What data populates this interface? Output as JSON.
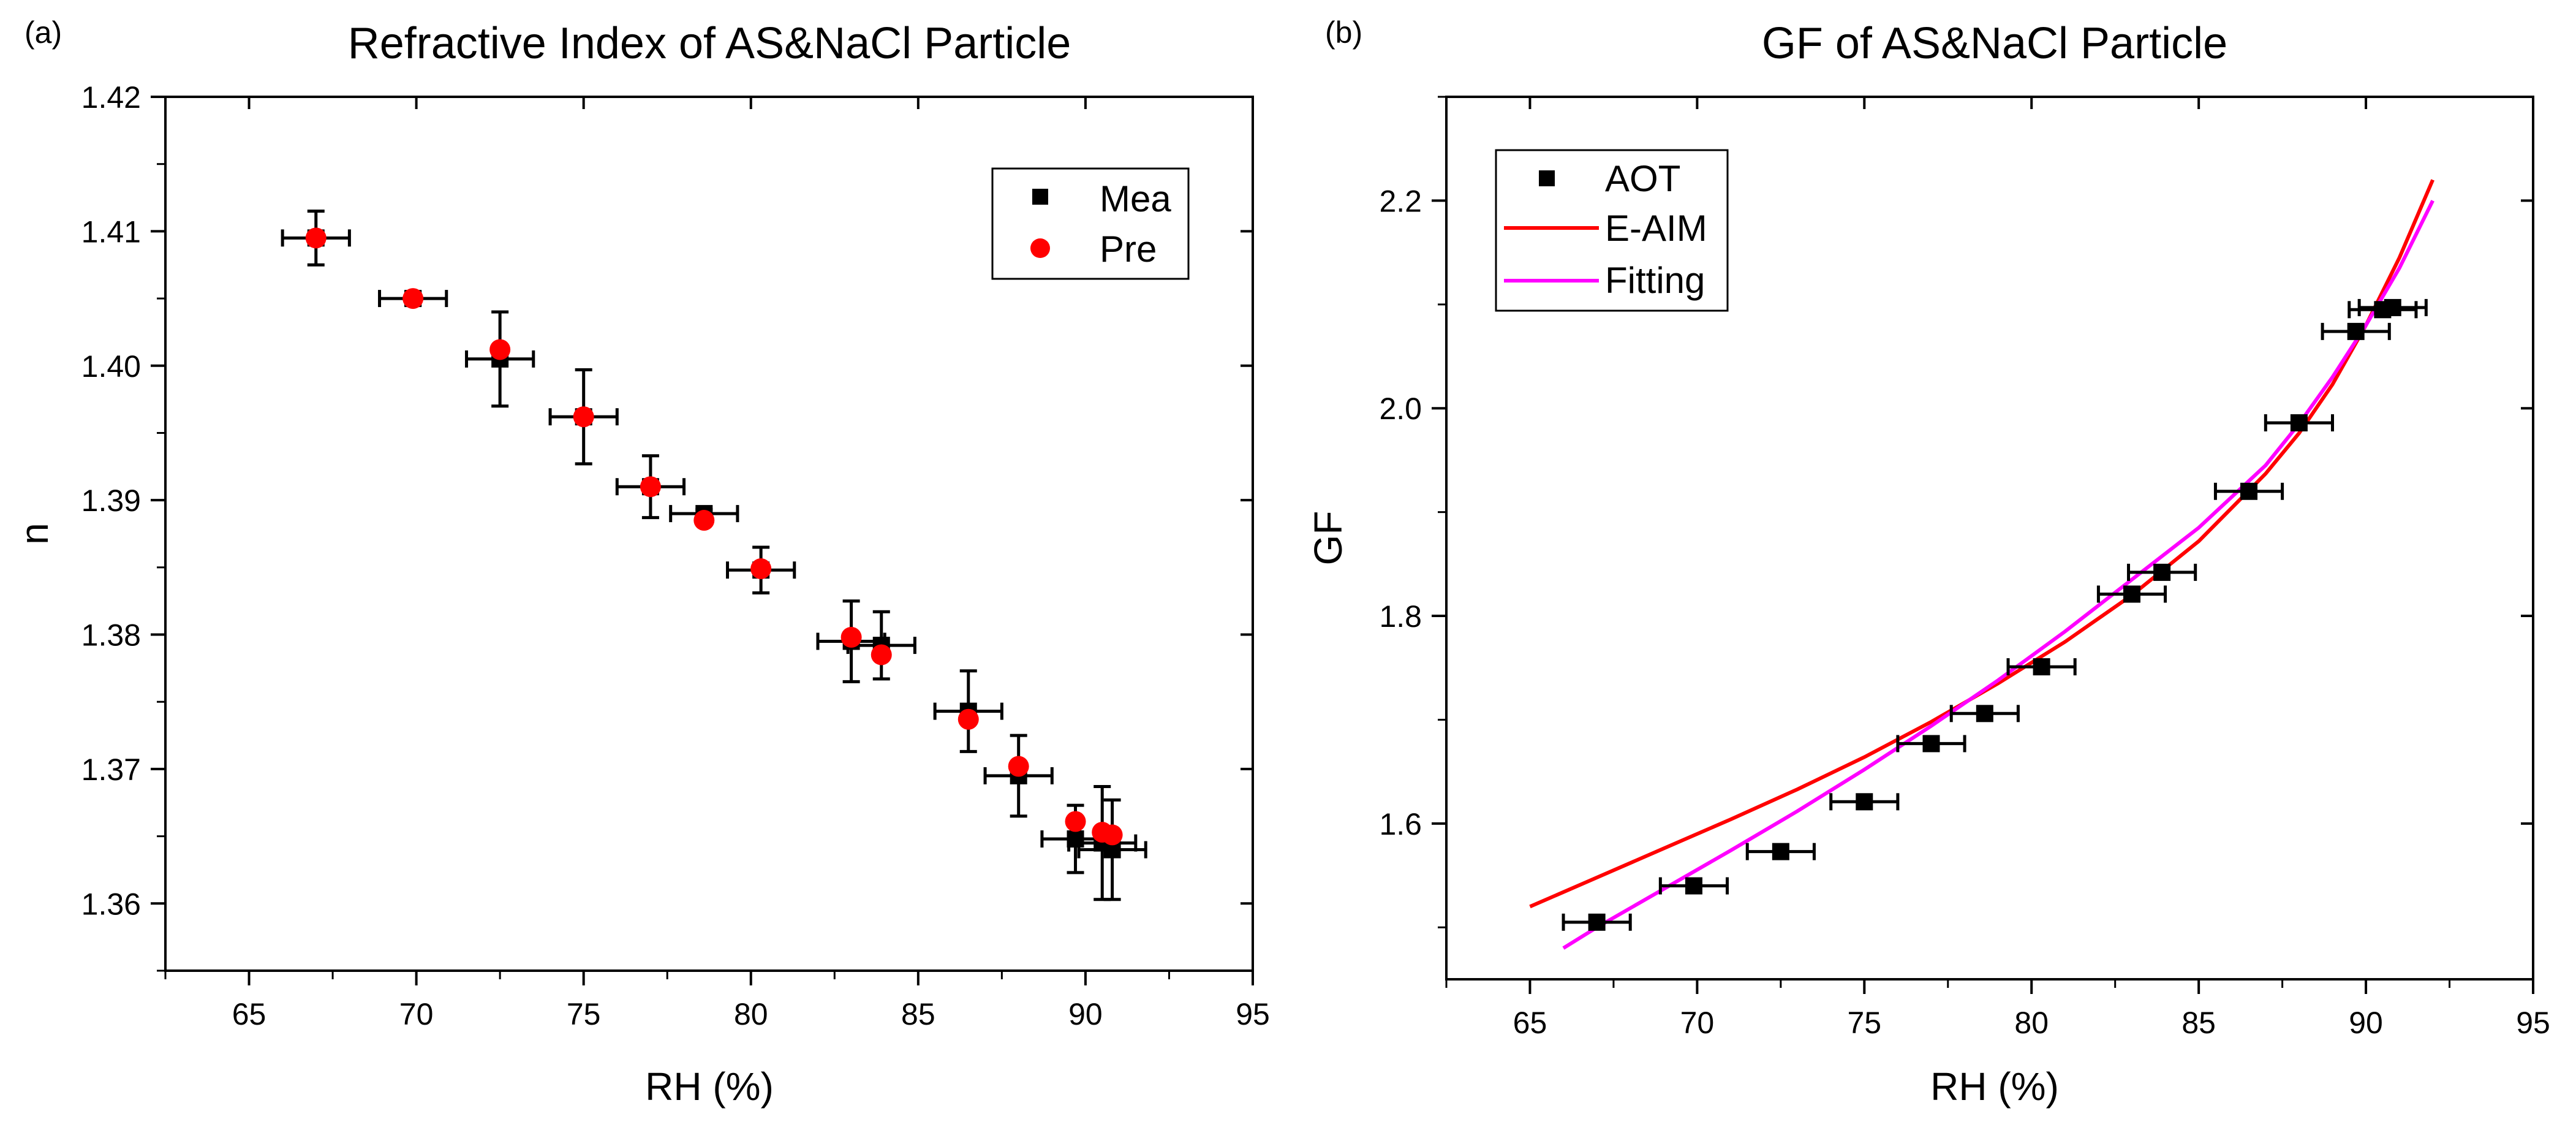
{
  "chart_data": [
    {
      "panel_label": "(a)",
      "type": "scatter",
      "title": "Refractive Index of AS&NaCl Particle",
      "xlabel": "RH (%)",
      "ylabel": "n",
      "xlim": [
        62.5,
        95
      ],
      "ylim": [
        1.355,
        1.42
      ],
      "xticks": [
        "65",
        "70",
        "75",
        "80",
        "85",
        "90",
        "95"
      ],
      "yticks": [
        "1.36",
        "1.37",
        "1.38",
        "1.39",
        "1.40",
        "1.41",
        "1.42"
      ],
      "legend": {
        "position": "top-right",
        "entries": [
          {
            "label": "Mea",
            "marker": "square",
            "color": "#000000"
          },
          {
            "label": "Pre",
            "marker": "circle",
            "color": "#ff0000"
          }
        ]
      },
      "series": [
        {
          "name": "Mea",
          "marker": "square",
          "color": "#000000",
          "points": [
            {
              "x": 67.0,
              "y": 1.4095,
              "xerr": 1.0,
              "yerr": 0.002
            },
            {
              "x": 69.9,
              "y": 1.405,
              "xerr": 1.0,
              "yerr": 0.0005
            },
            {
              "x": 72.5,
              "y": 1.4005,
              "xerr": 1.0,
              "yerr": 0.0035
            },
            {
              "x": 75.0,
              "y": 1.3962,
              "xerr": 1.0,
              "yerr": 0.0035
            },
            {
              "x": 77.0,
              "y": 1.391,
              "xerr": 1.0,
              "yerr": 0.0023
            },
            {
              "x": 78.6,
              "y": 1.389,
              "xerr": 1.0,
              "yerr": 0.0003
            },
            {
              "x": 80.3,
              "y": 1.3848,
              "xerr": 1.0,
              "yerr": 0.0017
            },
            {
              "x": 83.0,
              "y": 1.3795,
              "xerr": 1.0,
              "yerr": 0.003
            },
            {
              "x": 83.9,
              "y": 1.3792,
              "xerr": 1.0,
              "yerr": 0.0025
            },
            {
              "x": 86.5,
              "y": 1.3743,
              "xerr": 1.0,
              "yerr": 0.003
            },
            {
              "x": 88.0,
              "y": 1.3695,
              "xerr": 1.0,
              "yerr": 0.003
            },
            {
              "x": 89.7,
              "y": 1.3648,
              "xerr": 1.0,
              "yerr": 0.0025
            },
            {
              "x": 90.5,
              "y": 1.3645,
              "xerr": 1.0,
              "yerr": 0.0042
            },
            {
              "x": 90.8,
              "y": 1.364,
              "xerr": 1.0,
              "yerr": 0.0037
            }
          ]
        },
        {
          "name": "Pre",
          "marker": "circle",
          "color": "#ff0000",
          "points": [
            {
              "x": 67.0,
              "y": 1.4095
            },
            {
              "x": 69.9,
              "y": 1.405
            },
            {
              "x": 72.5,
              "y": 1.4012
            },
            {
              "x": 75.0,
              "y": 1.3962
            },
            {
              "x": 77.0,
              "y": 1.391
            },
            {
              "x": 78.6,
              "y": 1.3885
            },
            {
              "x": 80.3,
              "y": 1.3849
            },
            {
              "x": 83.0,
              "y": 1.3798
            },
            {
              "x": 83.9,
              "y": 1.3785
            },
            {
              "x": 86.5,
              "y": 1.3737
            },
            {
              "x": 88.0,
              "y": 1.3702
            },
            {
              "x": 89.7,
              "y": 1.3661
            },
            {
              "x": 90.5,
              "y": 1.3653
            },
            {
              "x": 90.8,
              "y": 1.3651
            }
          ]
        }
      ]
    },
    {
      "panel_label": "(b)",
      "type": "scatter",
      "title": "GF of AS&NaCl Particle",
      "xlabel": "RH (%)",
      "ylabel": "GF",
      "xlim": [
        62.5,
        95
      ],
      "ylim": [
        1.45,
        2.3
      ],
      "xticks": [
        "65",
        "70",
        "75",
        "80",
        "85",
        "90",
        "95"
      ],
      "yticks": [
        "1.6",
        "1.8",
        "2.0",
        "2.2"
      ],
      "legend": {
        "position": "top-left",
        "entries": [
          {
            "label": "AOT",
            "marker": "square",
            "color": "#000000"
          },
          {
            "label": "E-AIM",
            "marker": "line",
            "color": "#ff0000"
          },
          {
            "label": "Fitting",
            "marker": "line",
            "color": "#ff00ff"
          }
        ]
      },
      "series": [
        {
          "name": "AOT",
          "marker": "square",
          "color": "#000000",
          "points": [
            {
              "x": 67.0,
              "y": 1.505,
              "xerr": 1.0
            },
            {
              "x": 69.9,
              "y": 1.54,
              "xerr": 1.0
            },
            {
              "x": 72.5,
              "y": 1.573,
              "xerr": 1.0
            },
            {
              "x": 75.0,
              "y": 1.621,
              "xerr": 1.0
            },
            {
              "x": 77.0,
              "y": 1.677,
              "xerr": 1.0
            },
            {
              "x": 78.6,
              "y": 1.706,
              "xerr": 1.0
            },
            {
              "x": 80.3,
              "y": 1.751,
              "xerr": 1.0
            },
            {
              "x": 83.0,
              "y": 1.821,
              "xerr": 1.0
            },
            {
              "x": 83.9,
              "y": 1.842,
              "xerr": 1.0
            },
            {
              "x": 86.5,
              "y": 1.92,
              "xerr": 1.0
            },
            {
              "x": 88.0,
              "y": 1.986,
              "xerr": 1.0
            },
            {
              "x": 89.7,
              "y": 2.074,
              "xerr": 1.0
            },
            {
              "x": 90.5,
              "y": 2.095,
              "xerr": 1.0
            },
            {
              "x": 90.8,
              "y": 2.097,
              "xerr": 1.0
            }
          ]
        },
        {
          "name": "E-AIM",
          "type": "line",
          "color": "#ff0000",
          "x": [
            65,
            67,
            69,
            71,
            73,
            75,
            77,
            79,
            81,
            83,
            85,
            87,
            88,
            89,
            90,
            91,
            92
          ],
          "y": [
            1.52,
            1.548,
            1.576,
            1.604,
            1.633,
            1.664,
            1.698,
            1.735,
            1.775,
            1.82,
            1.872,
            1.937,
            1.976,
            2.023,
            2.08,
            2.145,
            2.22
          ]
        },
        {
          "name": "Fitting",
          "type": "line",
          "color": "#ff00ff",
          "x": [
            66,
            67,
            69,
            71,
            73,
            75,
            77,
            79,
            81,
            83,
            85,
            87,
            88,
            89,
            90,
            91,
            92
          ],
          "y": [
            1.48,
            1.5,
            1.537,
            1.574,
            1.612,
            1.652,
            1.694,
            1.738,
            1.785,
            1.835,
            1.885,
            1.945,
            1.985,
            2.03,
            2.08,
            2.135,
            2.2
          ]
        }
      ]
    }
  ]
}
